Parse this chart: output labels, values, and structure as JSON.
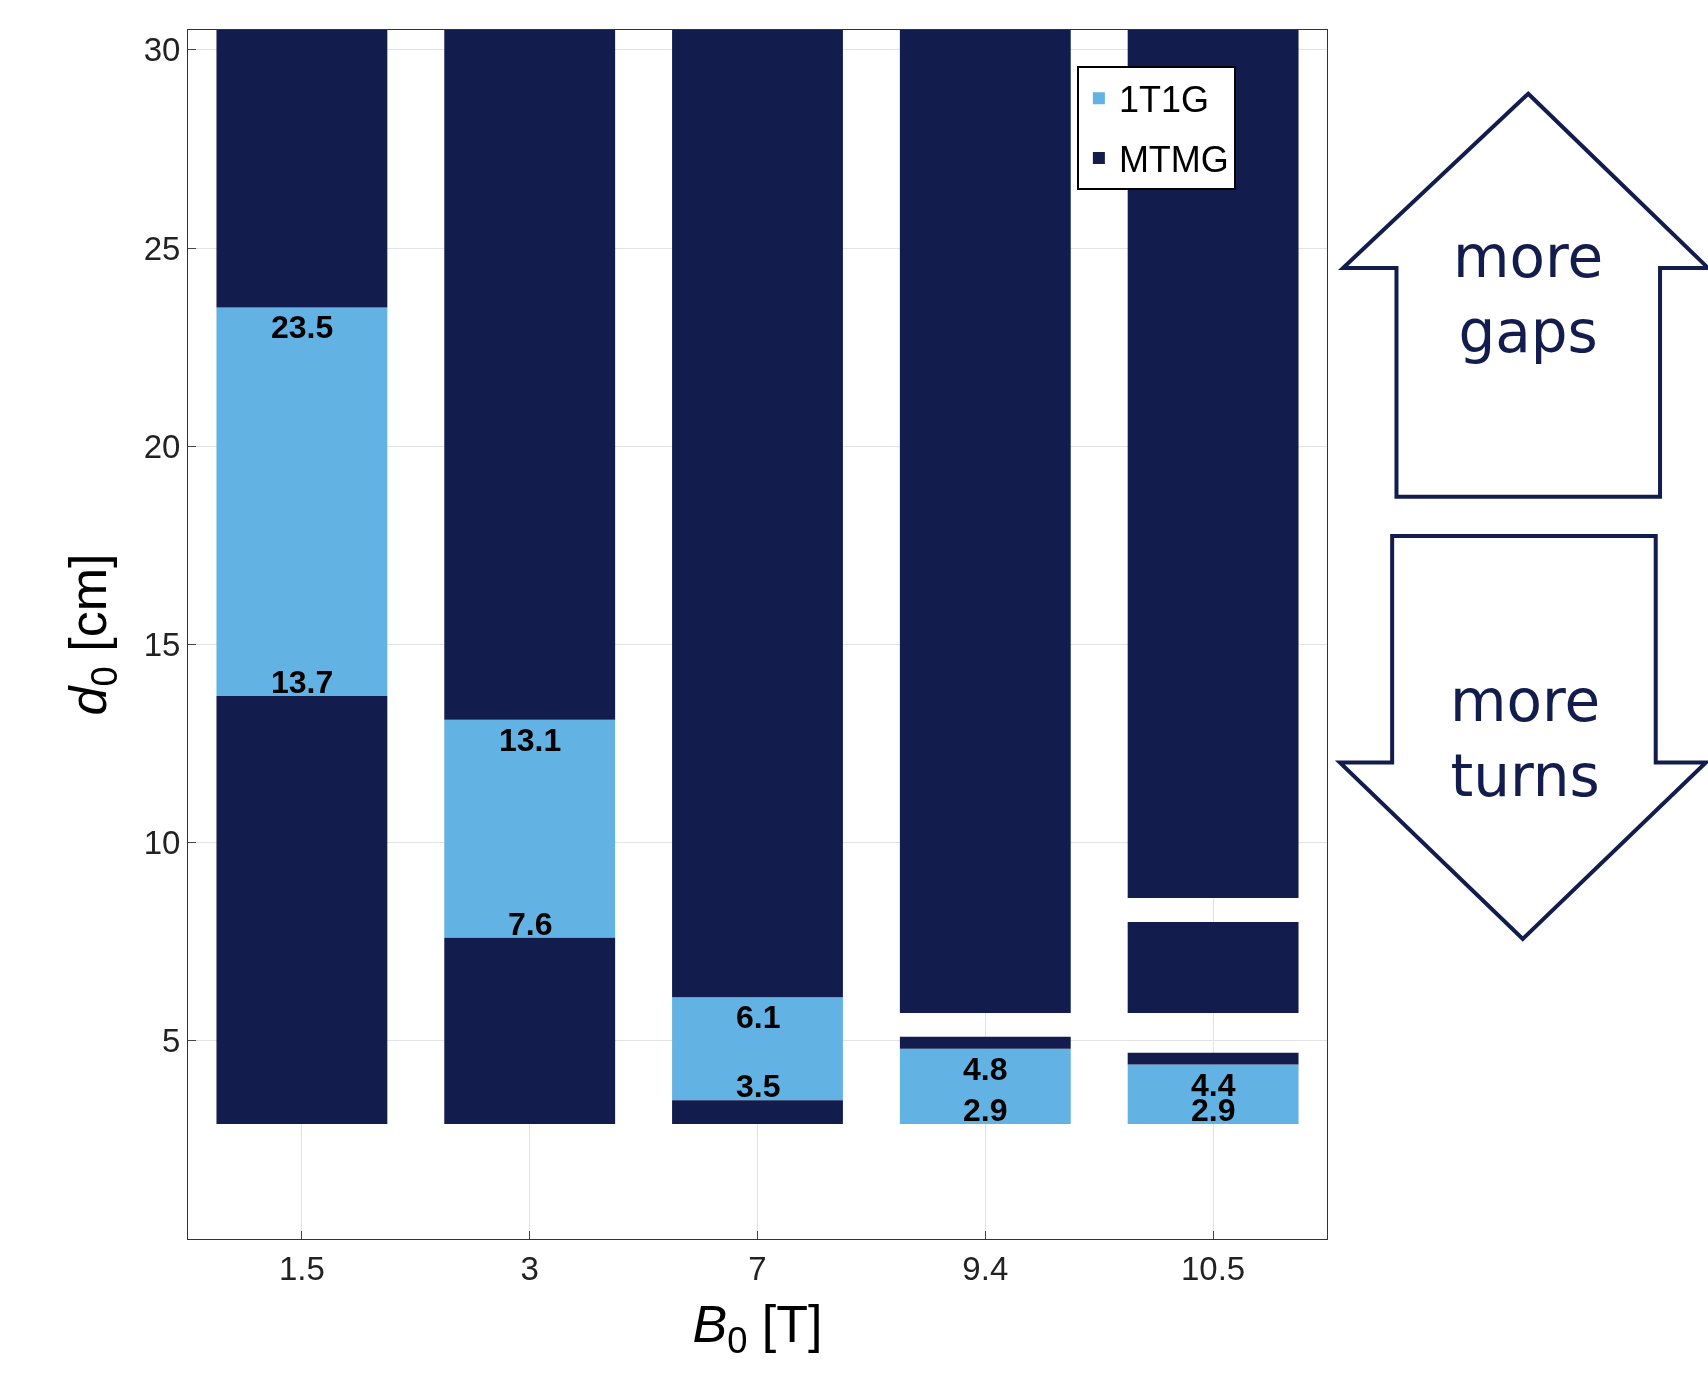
{
  "chart_data": {
    "type": "bar",
    "xlabel": "B$_{0}$ [T]",
    "ylabel": "d$_{0}$ [cm]",
    "categories": [
      "1.5",
      "3",
      "7",
      "9.4",
      "10.5"
    ],
    "series": [
      {
        "name": "1T1G",
        "color": "#62b3e4",
        "base": [
          13.7,
          7.6,
          3.5,
          2.9,
          2.9
        ],
        "values": [
          9.8,
          5.5,
          2.6,
          1.9,
          1.5
        ]
      },
      {
        "name": "MTMG",
        "color": "#121d4e",
        "base": [
          2.9,
          2.9,
          2.9,
          null,
          null
        ],
        "values": [
          10.8,
          4.7,
          0.6,
          null,
          null
        ]
      },
      {
        "color": "#121d4e",
        "base": [
          23.5,
          13.1,
          6.1,
          5.7,
          8.6
        ],
        "values": [
          7.0,
          17.4,
          24.4,
          24.8,
          21.9
        ]
      },
      {
        "color": "#121d4e",
        "base": [
          null,
          null,
          null,
          4.8,
          4.4
        ],
        "values": [
          null,
          null,
          null,
          0.3,
          0.3
        ]
      },
      {
        "color": "#121d4e",
        "base": [
          null,
          null,
          null,
          null,
          5.7
        ],
        "values": [
          null,
          null,
          null,
          null,
          2.3
        ]
      }
    ],
    "ylim": [
      0,
      30.5
    ],
    "yticks": [
      5,
      10,
      15,
      20,
      25,
      30
    ],
    "grid": true,
    "legend": "top right",
    "annotations": [
      {
        "text": "23.5",
        "x": "1.5",
        "y": 23.5
      },
      {
        "text": "13.7",
        "x": "1.5",
        "y": 13.7
      },
      {
        "text": "13.1",
        "x": "3",
        "y": 13.1
      },
      {
        "text": "7.6",
        "x": "3",
        "y": 7.6
      },
      {
        "text": "6.1",
        "x": "7",
        "y": 6.1
      },
      {
        "text": "3.5",
        "x": "7",
        "y": 3.5
      },
      {
        "text": "4.8",
        "x": "9.4",
        "y": 4.8
      },
      {
        "text": "2.9",
        "x": "9.4",
        "y": 2.9
      },
      {
        "text": "4.4",
        "x": "10.5",
        "y": 4.4
      },
      {
        "text": "2.9",
        "x": "10.5",
        "y": 2.9
      },
      "more gaps",
      "more turns"
    ]
  }
}
